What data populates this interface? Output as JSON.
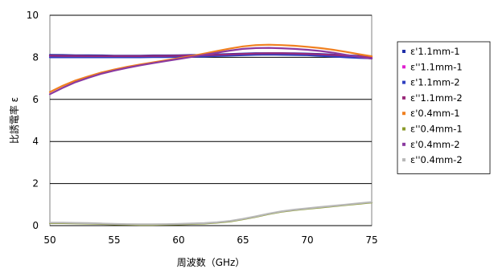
{
  "chart_data": {
    "type": "line",
    "title": "",
    "xlabel": "周波数（GHz）",
    "ylabel": "比誘電率 ε",
    "xlim": [
      50,
      75
    ],
    "ylim": [
      0,
      10
    ],
    "xticks": [
      "50",
      "55",
      "60",
      "65",
      "70",
      "75"
    ],
    "yticks": [
      "0",
      "2",
      "4",
      "6",
      "8",
      "10"
    ],
    "grid": "horizontal",
    "legend_position": "right",
    "x": [
      50,
      51,
      52,
      53,
      54,
      55,
      56,
      57,
      58,
      59,
      60,
      61,
      62,
      63,
      64,
      65,
      66,
      67,
      68,
      69,
      70,
      71,
      72,
      73,
      74,
      75
    ],
    "series": [
      {
        "name": "ε'1.1mm-1",
        "color": "#1f2fa8",
        "values": [
          8.12,
          8.11,
          8.1,
          8.1,
          8.09,
          8.08,
          8.08,
          8.08,
          8.09,
          8.09,
          8.1,
          8.11,
          8.12,
          8.14,
          8.16,
          8.18,
          8.2,
          8.2,
          8.2,
          8.19,
          8.18,
          8.16,
          8.13,
          8.1,
          8.07,
          8.05
        ]
      },
      {
        "name": "ε''1.1mm-1",
        "color": "#e020d0",
        "values": [
          8.05,
          8.04,
          8.04,
          8.03,
          8.03,
          8.03,
          8.03,
          8.03,
          8.03,
          8.04,
          8.04,
          8.05,
          8.06,
          8.08,
          8.1,
          8.12,
          8.14,
          8.15,
          8.15,
          8.14,
          8.13,
          8.11,
          8.08,
          8.05,
          8.02,
          8.0
        ]
      },
      {
        "name": "ε'1.1mm-2",
        "color": "#3040c0",
        "values": [
          8.0,
          8.0,
          8.0,
          8.0,
          8.0,
          8.0,
          8.0,
          8.0,
          8.01,
          8.01,
          8.02,
          8.03,
          8.04,
          8.06,
          8.08,
          8.1,
          8.12,
          8.13,
          8.12,
          8.11,
          8.1,
          8.07,
          8.04,
          8.0,
          7.97,
          7.95
        ]
      },
      {
        "name": "ε''1.1mm-2",
        "color": "#9a2a7a",
        "values": [
          8.08,
          8.07,
          8.07,
          8.06,
          8.06,
          8.06,
          8.06,
          8.06,
          8.07,
          8.07,
          8.08,
          8.09,
          8.1,
          8.12,
          8.14,
          8.16,
          8.18,
          8.19,
          8.19,
          8.18,
          8.16,
          8.14,
          8.11,
          8.08,
          8.05,
          8.03
        ]
      },
      {
        "name": "ε'0.4mm-1",
        "color": "#f08020",
        "values": [
          6.35,
          6.65,
          6.9,
          7.1,
          7.28,
          7.42,
          7.55,
          7.66,
          7.76,
          7.86,
          7.96,
          8.06,
          8.18,
          8.3,
          8.42,
          8.52,
          8.58,
          8.6,
          8.58,
          8.55,
          8.5,
          8.44,
          8.36,
          8.26,
          8.15,
          8.05
        ]
      },
      {
        "name": "ε''0.4mm-1",
        "color": "#8a9a2a",
        "values": [
          0.12,
          0.12,
          0.11,
          0.1,
          0.08,
          0.06,
          0.05,
          0.04,
          0.04,
          0.05,
          0.06,
          0.08,
          0.1,
          0.14,
          0.2,
          0.3,
          0.42,
          0.55,
          0.66,
          0.74,
          0.8,
          0.86,
          0.92,
          0.98,
          1.04,
          1.1
        ]
      },
      {
        "name": "ε'0.4mm-2",
        "color": "#8a3aa0",
        "values": [
          6.25,
          6.55,
          6.82,
          7.03,
          7.22,
          7.37,
          7.5,
          7.62,
          7.72,
          7.82,
          7.92,
          8.02,
          8.12,
          8.22,
          8.32,
          8.4,
          8.44,
          8.45,
          8.43,
          8.4,
          8.36,
          8.3,
          8.22,
          8.12,
          8.02,
          7.94
        ]
      },
      {
        "name": "ε''0.4mm-2",
        "color": "#b8b8b8",
        "values": [
          0.14,
          0.14,
          0.13,
          0.12,
          0.1,
          0.08,
          0.07,
          0.06,
          0.06,
          0.07,
          0.08,
          0.1,
          0.12,
          0.16,
          0.22,
          0.32,
          0.44,
          0.57,
          0.68,
          0.76,
          0.82,
          0.88,
          0.94,
          1.0,
          1.06,
          1.12
        ]
      }
    ]
  }
}
